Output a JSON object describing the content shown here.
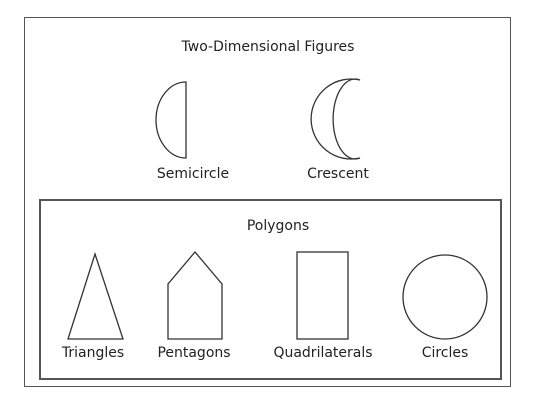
{
  "diagram": {
    "title": "Two-Dimensional Figures",
    "figures": [
      {
        "label": "Semicircle",
        "icon": "semicircle-icon"
      },
      {
        "label": "Crescent",
        "icon": "crescent-icon"
      }
    ],
    "polygons": {
      "title": "Polygons",
      "items": [
        {
          "label": "Triangles",
          "icon": "triangle-icon"
        },
        {
          "label": "Pentagons",
          "icon": "pentagon-icon"
        },
        {
          "label": "Quadrilaterals",
          "icon": "rectangle-icon"
        },
        {
          "label": "Circles",
          "icon": "circle-icon"
        }
      ]
    }
  }
}
